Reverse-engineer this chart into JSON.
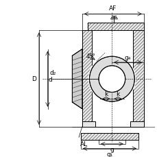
{
  "title": "",
  "bg_color": "#ffffff",
  "line_color": "#000000",
  "dim_color": "#000000",
  "hatch_color": "#000000",
  "labels": {
    "AF": "AF",
    "D": "D",
    "dz": "d₂",
    "d": "d",
    "g4": "g₄",
    "k": "k",
    "AL": "AL",
    "g": "g",
    "g1": "g₁",
    "angle": "45°"
  },
  "figsize": [
    2.3,
    2.3
  ],
  "dpi": 100
}
